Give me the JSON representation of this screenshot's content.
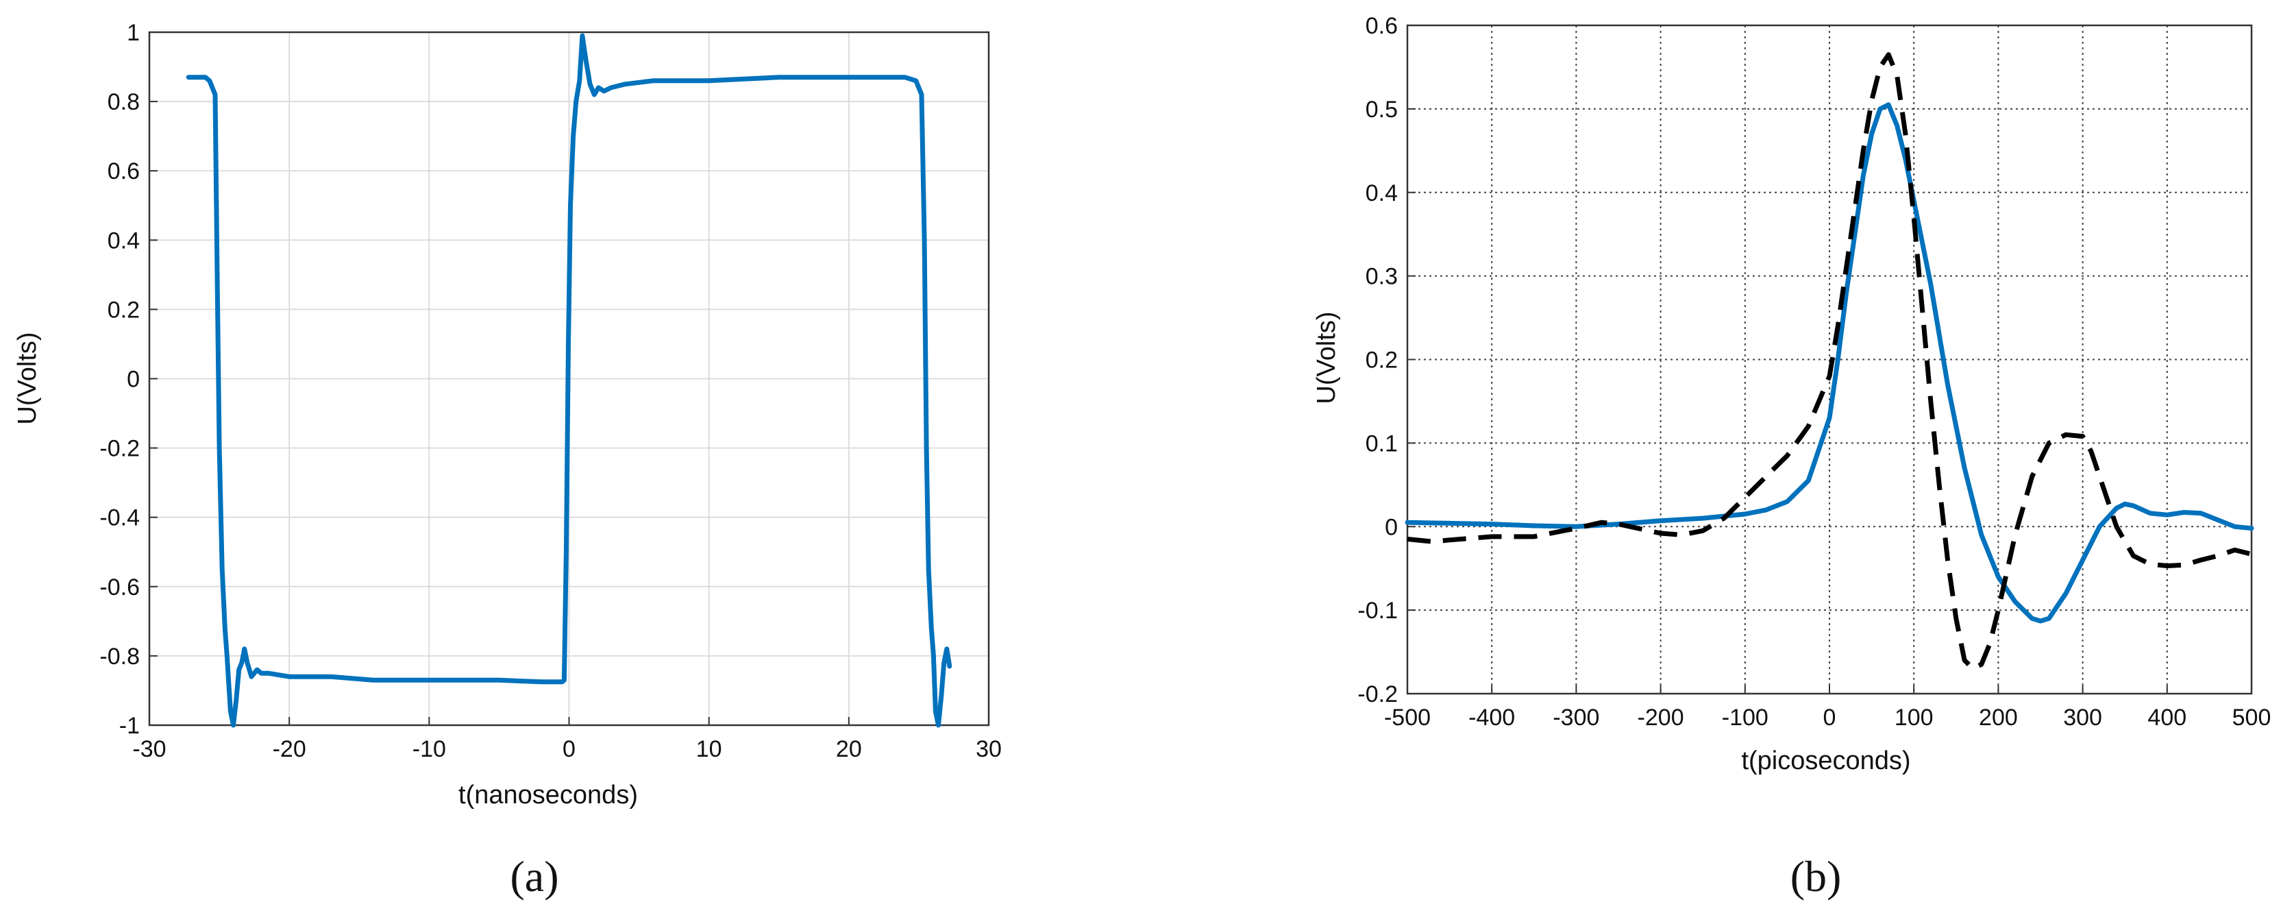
{
  "chart_data": [
    {
      "type": "line",
      "panel_label": "(a)",
      "xlabel": "t(nanoseconds)",
      "ylabel": "U(Volts)",
      "xlim": [
        -30,
        30
      ],
      "ylim": [
        -1,
        1
      ],
      "xticks": [
        -30,
        -20,
        -10,
        0,
        10,
        20,
        30
      ],
      "yticks": [
        -1,
        -0.8,
        -0.6,
        -0.4,
        -0.2,
        0,
        0.2,
        0.4,
        0.6,
        0.8,
        1
      ],
      "grid": true,
      "colors": {
        "series": "#0072BD",
        "grid": "#dddddd",
        "axes": "#333333"
      },
      "series": [
        {
          "style": "solid",
          "color": "#0072BD",
          "x": [
            -27.2,
            -26.5,
            -26.0,
            -25.7,
            -25.3,
            -25.15,
            -25.0,
            -24.8,
            -24.6,
            -24.45,
            -24.2,
            -24.0,
            -23.8,
            -23.6,
            -23.4,
            -23.2,
            -23.0,
            -22.7,
            -22.3,
            -22.0,
            -21.5,
            -20.0,
            -17.0,
            -14.0,
            -11.0,
            -8.0,
            -5.0,
            -2.0,
            -0.5,
            -0.35,
            -0.2,
            -0.05,
            0.1,
            0.3,
            0.5,
            0.75,
            0.95,
            1.2,
            1.5,
            1.8,
            2.1,
            2.5,
            3.0,
            4.0,
            6.0,
            10.0,
            15.0,
            20.0,
            24.0,
            24.8,
            25.2,
            25.4,
            25.55,
            25.7,
            25.9,
            26.05,
            26.2,
            26.4,
            26.6,
            26.8,
            27.0,
            27.2
          ],
          "y": [
            0.87,
            0.87,
            0.87,
            0.86,
            0.82,
            0.3,
            -0.2,
            -0.55,
            -0.72,
            -0.8,
            -0.96,
            -1.0,
            -0.93,
            -0.84,
            -0.82,
            -0.78,
            -0.82,
            -0.86,
            -0.84,
            -0.85,
            -0.85,
            -0.86,
            -0.86,
            -0.87,
            -0.87,
            -0.87,
            -0.87,
            -0.875,
            -0.875,
            -0.87,
            -0.5,
            0.1,
            0.5,
            0.7,
            0.8,
            0.86,
            0.99,
            0.92,
            0.85,
            0.82,
            0.84,
            0.83,
            0.84,
            0.85,
            0.86,
            0.86,
            0.87,
            0.87,
            0.87,
            0.86,
            0.82,
            0.4,
            -0.2,
            -0.55,
            -0.72,
            -0.8,
            -0.96,
            -1.0,
            -0.92,
            -0.82,
            -0.78,
            -0.83
          ]
        }
      ]
    },
    {
      "type": "line",
      "panel_label": "(b)",
      "xlabel": "t(picoseconds)",
      "ylabel": "U(Volts)",
      "xlim": [
        -500,
        500
      ],
      "ylim": [
        -0.2,
        0.6
      ],
      "xticks": [
        -500,
        -400,
        -300,
        -200,
        -100,
        0,
        100,
        200,
        300,
        400,
        500
      ],
      "yticks": [
        -0.2,
        -0.1,
        0,
        0.1,
        0.2,
        0.3,
        0.4,
        0.5,
        0.6
      ],
      "grid": true,
      "colors": {
        "grid": "#444444",
        "axes": "#333333"
      },
      "series": [
        {
          "style": "solid",
          "color": "#0072BD",
          "x": [
            -500,
            -450,
            -400,
            -350,
            -300,
            -250,
            -200,
            -150,
            -100,
            -75,
            -50,
            -25,
            0,
            10,
            20,
            30,
            40,
            50,
            60,
            70,
            80,
            90,
            100,
            120,
            140,
            160,
            180,
            200,
            220,
            240,
            250,
            260,
            280,
            300,
            320,
            340,
            350,
            360,
            380,
            400,
            420,
            440,
            460,
            480,
            500
          ],
          "y": [
            0.005,
            0.004,
            0.003,
            0.001,
            0.0,
            0.003,
            0.007,
            0.01,
            0.015,
            0.02,
            0.03,
            0.055,
            0.13,
            0.2,
            0.28,
            0.35,
            0.42,
            0.47,
            0.5,
            0.505,
            0.48,
            0.44,
            0.39,
            0.29,
            0.17,
            0.07,
            -0.01,
            -0.06,
            -0.09,
            -0.11,
            -0.113,
            -0.11,
            -0.08,
            -0.04,
            0.0,
            0.022,
            0.027,
            0.025,
            0.016,
            0.014,
            0.017,
            0.016,
            0.008,
            0.0,
            -0.002
          ]
        },
        {
          "style": "dashed",
          "color": "#000000",
          "x": [
            -500,
            -470,
            -450,
            -400,
            -350,
            -300,
            -270,
            -250,
            -200,
            -175,
            -150,
            -125,
            -100,
            -75,
            -50,
            -25,
            0,
            10,
            20,
            30,
            40,
            50,
            60,
            70,
            80,
            90,
            100,
            110,
            120,
            130,
            140,
            150,
            160,
            170,
            180,
            190,
            200,
            210,
            220,
            240,
            260,
            280,
            300,
            310,
            320,
            330,
            340,
            360,
            380,
            400,
            420,
            440,
            460,
            480,
            500
          ],
          "y": [
            -0.015,
            -0.018,
            -0.016,
            -0.012,
            -0.012,
            -0.002,
            0.005,
            0.003,
            -0.008,
            -0.01,
            -0.005,
            0.01,
            0.035,
            0.06,
            0.085,
            0.12,
            0.18,
            0.24,
            0.31,
            0.38,
            0.45,
            0.51,
            0.55,
            0.565,
            0.54,
            0.47,
            0.37,
            0.26,
            0.15,
            0.05,
            -0.04,
            -0.11,
            -0.16,
            -0.17,
            -0.165,
            -0.14,
            -0.1,
            -0.055,
            -0.01,
            0.06,
            0.1,
            0.11,
            0.108,
            0.09,
            0.06,
            0.03,
            0.0,
            -0.035,
            -0.045,
            -0.047,
            -0.046,
            -0.04,
            -0.035,
            -0.028,
            -0.033
          ]
        }
      ]
    }
  ]
}
